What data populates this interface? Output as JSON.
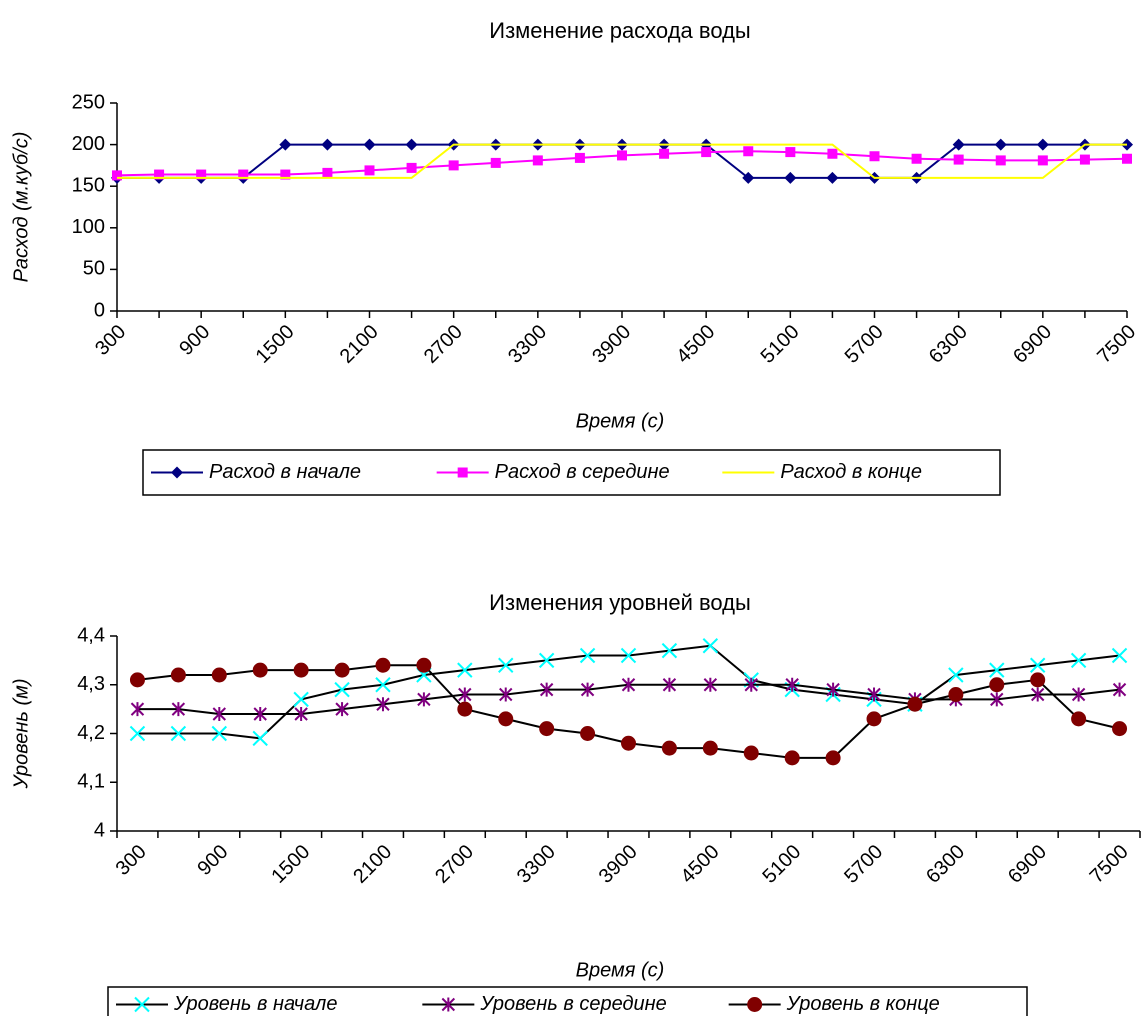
{
  "chart_data": [
    {
      "type": "line",
      "title": "Изменение расхода воды",
      "x_label": "Время (с)",
      "y_label": "Расход (м.куб/с)",
      "categories": [
        "300",
        null,
        "900",
        null,
        "1500",
        null,
        "2100",
        null,
        "2700",
        null,
        "3300",
        null,
        "3900",
        null,
        "4500",
        null,
        "5100",
        null,
        "5700",
        null,
        "6300",
        null,
        "6900",
        null,
        "7500"
      ],
      "ylim": [
        0,
        250
      ],
      "yticks": [
        0,
        50,
        100,
        150,
        200,
        250
      ],
      "series": [
        {
          "name": "Расход в начале",
          "color": "#000080",
          "marker": "diamond",
          "values": [
            160,
            160,
            160,
            160,
            200,
            200,
            200,
            200,
            200,
            200,
            200,
            200,
            200,
            200,
            200,
            160,
            160,
            160,
            160,
            160,
            200,
            200,
            200,
            200,
            200
          ]
        },
        {
          "name": "Расход в середине",
          "color": "#FF00FF",
          "marker": "square",
          "values": [
            163,
            164,
            164,
            164,
            164,
            166,
            169,
            172,
            175,
            178,
            181,
            184,
            187,
            189,
            191,
            192,
            191,
            189,
            186,
            183,
            182,
            181,
            181,
            182,
            183
          ]
        },
        {
          "name": "Расход в конце",
          "color": "#FFFF00",
          "marker": "none",
          "values": [
            160,
            160,
            160,
            160,
            160,
            160,
            160,
            160,
            200,
            200,
            200,
            200,
            200,
            200,
            200,
            200,
            200,
            200,
            160,
            160,
            160,
            160,
            160,
            200,
            200
          ]
        }
      ]
    },
    {
      "type": "line",
      "title": "Изменения уровней воды",
      "x_label": "Время (с)",
      "y_label": "Уровень (м)",
      "categories": [
        "300",
        null,
        "900",
        null,
        "1500",
        null,
        "2100",
        null,
        "2700",
        null,
        "3300",
        null,
        "3900",
        null,
        "4500",
        null,
        "5100",
        null,
        "5700",
        null,
        "6300",
        null,
        "6900",
        null,
        "7500"
      ],
      "ylim": [
        4,
        4.4
      ],
      "yticks": [
        4,
        {
          "value": 4.1,
          "label": "4,1"
        },
        {
          "value": 4.2,
          "label": "4,2"
        },
        {
          "value": 4.3,
          "label": "4,3"
        },
        {
          "value": 4.4,
          "label": "4,4"
        }
      ],
      "series": [
        {
          "name": "Уровень в начале",
          "color": "#00FFFF",
          "marker": "x",
          "values": [
            4.2,
            4.2,
            4.2,
            4.19,
            4.27,
            4.29,
            4.3,
            4.32,
            4.33,
            4.34,
            4.35,
            4.36,
            4.36,
            4.37,
            4.38,
            4.31,
            4.29,
            4.28,
            4.27,
            4.26,
            4.32,
            4.33,
            4.34,
            4.35,
            4.36
          ]
        },
        {
          "name": "Уровень в середине",
          "color": "#800080",
          "marker": "star",
          "values": [
            4.25,
            4.25,
            4.24,
            4.24,
            4.24,
            4.25,
            4.26,
            4.27,
            4.28,
            4.28,
            4.29,
            4.29,
            4.3,
            4.3,
            4.3,
            4.3,
            4.3,
            4.29,
            4.28,
            4.27,
            4.27,
            4.27,
            4.28,
            4.28,
            4.29
          ]
        },
        {
          "name": "Уровень в конце",
          "color": "#800000",
          "marker": "circle",
          "values": [
            4.31,
            4.32,
            4.32,
            4.33,
            4.33,
            4.33,
            4.34,
            4.34,
            4.25,
            4.23,
            4.21,
            4.2,
            4.18,
            4.17,
            4.17,
            4.16,
            4.15,
            4.15,
            4.23,
            4.26,
            4.28,
            4.3,
            4.31,
            4.23,
            4.21
          ]
        }
      ]
    }
  ]
}
